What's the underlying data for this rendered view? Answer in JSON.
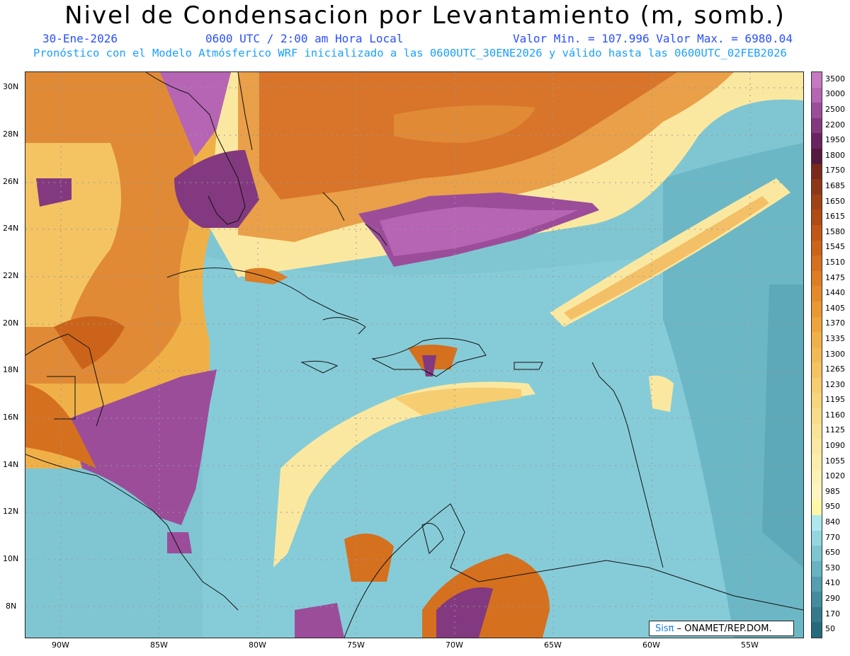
{
  "header": {
    "title": "Nivel de Condensacion por Levantamiento (m, somb.)",
    "date": "30-Ene-2026",
    "time": "0600 UTC / 2:00 am Hora Local",
    "minmax": "Valor Min. = 107.996   Valor Max. = 6980.04",
    "forecast": "Pronóstico con el Modelo Atmósferico WRF inicializado a las 0600UTC_30ENE2026 y válido hasta las  0600UTC_02FEB2026"
  },
  "axes": {
    "lat_labels": [
      "30N",
      "28N",
      "26N",
      "24N",
      "22N",
      "20N",
      "18N",
      "16N",
      "14N",
      "12N",
      "10N",
      "8N"
    ],
    "lon_labels": [
      "90W",
      "85W",
      "80W",
      "75W",
      "70W",
      "65W",
      "60W",
      "55W"
    ]
  },
  "colorbar": {
    "labels": [
      "3500",
      "3000",
      "2500",
      "2200",
      "1950",
      "1800",
      "1750",
      "1685",
      "1650",
      "1615",
      "1580",
      "1545",
      "1510",
      "1475",
      "1440",
      "1405",
      "1370",
      "1335",
      "1300",
      "1265",
      "1230",
      "1195",
      "1160",
      "1125",
      "1090",
      "1055",
      "1020",
      "985",
      "950",
      "840",
      "770",
      "650",
      "530",
      "410",
      "290",
      "170",
      "50"
    ],
    "colors": [
      "#c579c0",
      "#b565b3",
      "#9b4d9a",
      "#83397f",
      "#6a2462",
      "#551a3d",
      "#7a2a1c",
      "#8e3718",
      "#a04216",
      "#b14b14",
      "#bf5716",
      "#cb641a",
      "#d5701e",
      "#de7d24",
      "#e48a2a",
      "#e99832",
      "#eda43c",
      "#f0b048",
      "#f2ba56",
      "#f4c462",
      "#f6cd70",
      "#f7d57d",
      "#f8dc8a",
      "#f9e396",
      "#fae9a2",
      "#fbeead",
      "#fcf2b6",
      "#fdf5bf",
      "#fff7a8",
      "#aee8ee",
      "#93d6e0",
      "#7cc5d1",
      "#66b3c2",
      "#539fb1",
      "#428c9f",
      "#337a8d",
      "#256a7d"
    ]
  },
  "logo": {
    "sis": "Sisπ",
    "org": " – ONAMET/REP.DOM."
  },
  "colors": {
    "accent": "#2a4fff",
    "cyan": "#1aa0ff"
  }
}
